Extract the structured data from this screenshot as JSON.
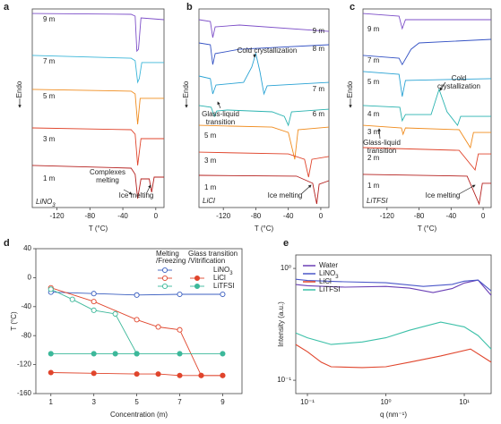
{
  "chart_data": [
    {
      "type": "line",
      "label": "a",
      "xlabel": "T (°C)",
      "ylabel": "Endo",
      "salt": "LiNO3",
      "xlim": [
        -150,
        10
      ],
      "xticks": [
        -120,
        -80,
        -40,
        0
      ],
      "ylim": [
        0,
        100
      ],
      "annotations": [
        [
          "Complexes",
          "melting"
        ],
        [
          "Ice melting"
        ]
      ],
      "series": [
        {
          "name": "9 m",
          "color": "#7d4fc8",
          "x": [
            -150,
            -30,
            -25,
            -23,
            -21,
            -18,
            10
          ],
          "values": [
            97.7,
            97.3,
            96.4,
            78.8,
            79.7,
            95.5,
            94.6
          ]
        },
        {
          "name": "7 m",
          "color": "#3bb6d9",
          "x": [
            -150,
            -30,
            -25,
            -22,
            -20,
            -17,
            10
          ],
          "values": [
            76.6,
            75.2,
            73.9,
            63.1,
            64.9,
            73,
            73
          ]
        },
        {
          "name": "5 m",
          "color": "#f08c1e",
          "x": [
            -150,
            -30,
            -25,
            -22,
            -19,
            10
          ],
          "values": [
            59.5,
            58.6,
            57.2,
            41.9,
            55,
            55
          ]
        },
        {
          "name": "3 m",
          "color": "#e0452c",
          "x": [
            -150,
            -30,
            -25,
            -22,
            -18,
            10
          ],
          "values": [
            40.1,
            39.2,
            36.9,
            21.2,
            34.7,
            34.7
          ]
        },
        {
          "name": "1 m",
          "color": "#b5201e",
          "x": [
            -150,
            -30,
            -25,
            -22,
            -18,
            -8,
            -5,
            -2,
            10
          ],
          "values": [
            21.2,
            19.8,
            16.7,
            4.5,
            14.4,
            14.4,
            7.7,
            15.3,
            15.3
          ]
        }
      ]
    },
    {
      "type": "line",
      "label": "b",
      "xlabel": "T (°C)",
      "ylabel": "Endo",
      "salt": "LiCl",
      "xlim": [
        -150,
        10
      ],
      "xticks": [
        -120,
        -80,
        -40,
        0
      ],
      "ylim": [
        0,
        100
      ],
      "annotations": [
        [
          "Cold crystallization"
        ],
        [
          "Glass-liquid",
          "transition"
        ],
        [
          "Ice melting"
        ]
      ],
      "series": [
        {
          "name": "9 m",
          "color": "#7d4fc8",
          "x": [
            -150,
            -136,
            -133,
            -130,
            -100,
            10
          ],
          "values": [
            94.6,
            93.7,
            85.6,
            91,
            91.9,
            88.7
          ]
        },
        {
          "name": "8 m",
          "color": "#3452c4",
          "x": [
            -150,
            -136,
            -133,
            -130,
            -100,
            10
          ],
          "values": [
            82.9,
            82,
            72,
            77.5,
            79.7,
            82
          ]
        },
        {
          "name": "7 m",
          "color": "#2aa3d4",
          "x": [
            -150,
            -136,
            -133,
            -129,
            -95,
            -85,
            -80,
            -75,
            -70,
            -66,
            10
          ],
          "values": [
            66.2,
            64.9,
            57.2,
            61.7,
            63,
            70.7,
            77.5,
            68.5,
            57.2,
            61.3,
            63
          ]
        },
        {
          "name": "6 m",
          "color": "#2ab3b0",
          "x": [
            -150,
            -135,
            -131,
            -128,
            -115,
            -60,
            -45,
            -40,
            -36,
            10
          ],
          "values": [
            51.4,
            50.5,
            45.9,
            48.6,
            49.1,
            48.2,
            45.9,
            41.4,
            48.2,
            49.5
          ]
        },
        {
          "name": "5 m",
          "color": "#f08c1e",
          "x": [
            -150,
            -60,
            -40,
            -32,
            -28,
            10
          ],
          "values": [
            41.4,
            40.5,
            37.8,
            24.3,
            39.2,
            40.5
          ]
        },
        {
          "name": "3 m",
          "color": "#e0452c",
          "x": [
            -150,
            -40,
            -20,
            -15,
            -11,
            10
          ],
          "values": [
            27.9,
            27,
            24.3,
            15.3,
            24.3,
            25.7
          ]
        },
        {
          "name": "1 m",
          "color": "#b5201e",
          "x": [
            -150,
            -30,
            -10,
            -5,
            -2,
            10
          ],
          "values": [
            16.2,
            15.8,
            12.2,
            1.8,
            11.7,
            13.5
          ]
        }
      ]
    },
    {
      "type": "line",
      "label": "c",
      "xlabel": "T (°C)",
      "ylabel": "Endo",
      "salt": "LiTFSI",
      "xlim": [
        -150,
        10
      ],
      "xticks": [
        -120,
        -80,
        -40,
        0
      ],
      "ylim": [
        0,
        100
      ],
      "annotations": [
        [
          "Cold",
          "crystallization"
        ],
        [
          "Glass-liquid",
          "transition"
        ],
        [
          "Ice melting"
        ]
      ],
      "series": [
        {
          "name": "9 m",
          "color": "#7d4fc8",
          "x": [
            -150,
            -105,
            -101,
            -97,
            10
          ],
          "values": [
            97.7,
            96.4,
            90.1,
            94.6,
            94.6
          ]
        },
        {
          "name": "7 m",
          "color": "#3452c4",
          "x": [
            -150,
            -105,
            -101,
            -90,
            -80,
            10
          ],
          "values": [
            76.6,
            75.2,
            72,
            79.7,
            82.9,
            84.7
          ]
        },
        {
          "name": "5 m",
          "color": "#2aa3d4",
          "x": [
            -150,
            -105,
            -101,
            -97,
            10
          ],
          "values": [
            68.5,
            67.1,
            55.9,
            64,
            64.9
          ]
        },
        {
          "name": "4 m",
          "color": "#2ab3b0",
          "x": [
            -150,
            -104,
            -101,
            -97,
            -65,
            -55,
            -45,
            -32,
            -28,
            10
          ],
          "values": [
            51.4,
            50.5,
            43.7,
            46.8,
            46.8,
            59.5,
            48.2,
            41.4,
            45.9,
            45.9
          ]
        },
        {
          "name": "3 m",
          "color": "#f08c1e",
          "x": [
            -150,
            -102,
            -100,
            -97,
            -30,
            -16,
            -12,
            10
          ],
          "values": [
            41.4,
            40.1,
            36.9,
            40.1,
            39.2,
            30.2,
            37.8,
            37.8
          ]
        },
        {
          "name": "2 m",
          "color": "#e0452c",
          "x": [
            -150,
            -30,
            -10,
            -6,
            10
          ],
          "values": [
            30.2,
            28.8,
            18.9,
            27,
            27
          ]
        },
        {
          "name": "1 m",
          "color": "#b5201e",
          "x": [
            -150,
            -20,
            -5,
            -1,
            10
          ],
          "values": [
            16.7,
            15.8,
            1.8,
            12.2,
            12.2
          ]
        }
      ]
    },
    {
      "type": "markers",
      "label": "d",
      "xlabel": "Concentration (m)",
      "ylabel": "T (°C)",
      "xlim": [
        0.3,
        9.9
      ],
      "xticks": [
        1,
        3,
        5,
        7,
        9
      ],
      "ylim": [
        -160,
        40
      ],
      "yticks": [
        -160,
        -120,
        -80,
        -40,
        0,
        40
      ],
      "legend_columns": [
        [
          "Melting",
          "/Freezing"
        ],
        [
          "Glass transition",
          "/Vitrification"
        ]
      ],
      "series": [
        {
          "name": "LiNO3",
          "color": "#3b5fc0",
          "melting": {
            "x": [
              1,
              3,
              5,
              7,
              9
            ],
            "values": [
              -20,
              -22,
              -24,
              -23,
              -23
            ]
          }
        },
        {
          "name": "LiCl",
          "color": "#e0452c",
          "melting": {
            "x": [
              1,
              3,
              5,
              6,
              7,
              8,
              9
            ],
            "values": [
              -14,
              -33,
              -58,
              -68,
              -72,
              -135,
              -135
            ]
          },
          "glass": {
            "x": [
              1,
              3,
              5,
              6,
              7,
              8,
              9
            ],
            "values": [
              -131,
              -132,
              -133,
              -133,
              -135,
              -135,
              -135
            ]
          }
        },
        {
          "name": "LiTFSI",
          "color": "#3cb89a",
          "melting": {
            "x": [
              1,
              2,
              3,
              4,
              5
            ],
            "values": [
              -16,
              -30,
              -45,
              -50,
              -105
            ]
          },
          "glass": {
            "x": [
              1,
              3,
              4,
              5,
              7,
              9
            ],
            "values": [
              -105,
              -105,
              -105,
              -105,
              -105,
              -105
            ]
          }
        }
      ]
    },
    {
      "type": "line",
      "label": "e",
      "xlabel": "q (nm⁻¹)",
      "ylabel": "Intensity (a.u.)",
      "xscale": "log",
      "yscale": "log",
      "xlim": [
        0.071,
        22
      ],
      "xticks": [
        {
          "value": 0.1,
          "label": "10⁻¹"
        },
        {
          "value": 1,
          "label": "10⁰"
        },
        {
          "value": 10,
          "label": "10¹"
        }
      ],
      "ylim": [
        0.076,
        1.32
      ],
      "yticks": [
        {
          "value": 0.1,
          "label": "10⁻¹"
        },
        {
          "value": 1,
          "label": "10⁰"
        }
      ],
      "series": [
        {
          "name": "Water",
          "color": "#6a3fb5",
          "x": [
            0.071,
            0.1,
            0.3,
            1,
            2,
            4,
            7,
            10,
            15,
            22
          ],
          "values": [
            0.718,
            0.7,
            0.68,
            0.69,
            0.667,
            0.608,
            0.66,
            0.74,
            0.787,
            0.575
          ]
        },
        {
          "name": "LiNO3",
          "color": "#4b57c9",
          "x": [
            0.071,
            0.1,
            0.3,
            1,
            3,
            7,
            10,
            15,
            22
          ],
          "values": [
            0.8,
            0.78,
            0.76,
            0.745,
            0.69,
            0.72,
            0.77,
            0.787,
            0.63
          ]
        },
        {
          "name": "LiCl",
          "color": "#e0452c",
          "x": [
            0.071,
            0.1,
            0.15,
            0.2,
            0.5,
            1,
            2,
            5,
            12,
            22
          ],
          "values": [
            0.209,
            0.18,
            0.145,
            0.132,
            0.13,
            0.132,
            0.145,
            0.165,
            0.19,
            0.145
          ]
        },
        {
          "name": "LiTFSI",
          "color": "#3cc0a8",
          "x": [
            0.071,
            0.1,
            0.2,
            0.5,
            1,
            2,
            5,
            10,
            15,
            22
          ],
          "values": [
            0.265,
            0.24,
            0.209,
            0.22,
            0.24,
            0.28,
            0.331,
            0.3,
            0.251,
            0.19
          ]
        }
      ]
    }
  ]
}
